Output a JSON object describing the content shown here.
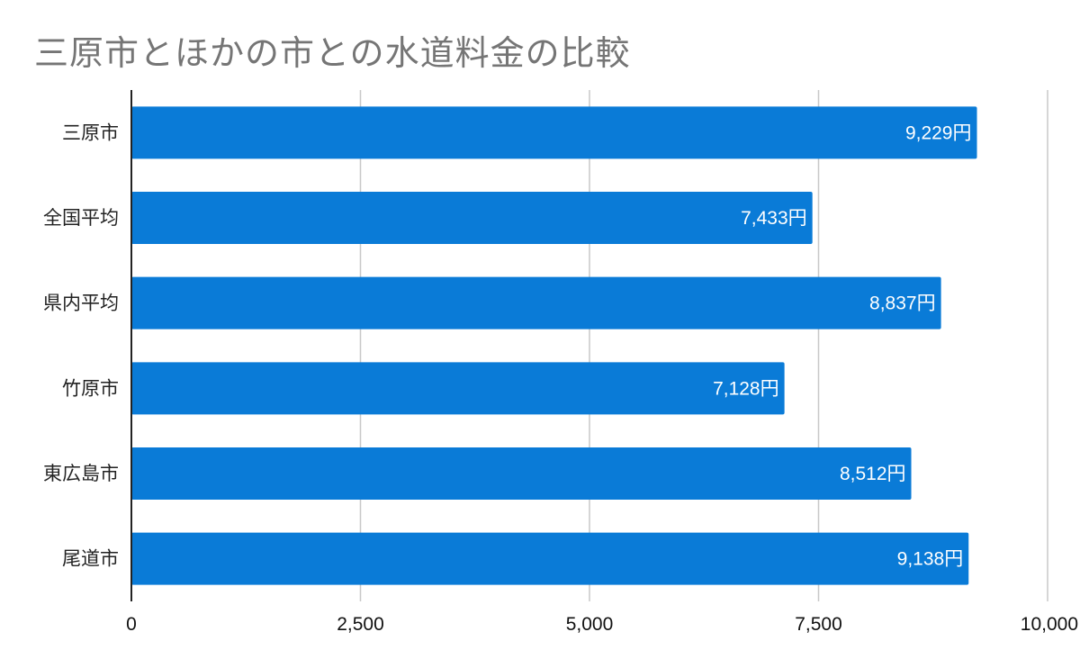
{
  "chart_data": {
    "type": "bar",
    "orientation": "horizontal",
    "title": "三原市とほかの市との水道料金の比較",
    "categories": [
      "三原市",
      "全国平均",
      "県内平均",
      "竹原市",
      "東広島市",
      "尾道市"
    ],
    "values": [
      9229,
      7433,
      8837,
      7128,
      8512,
      9138
    ],
    "data_labels": [
      "9,229円",
      "7,433円",
      "8,837円",
      "7,128円",
      "8,512円",
      "9,138円"
    ],
    "x_ticks": [
      "0",
      "2,500",
      "5,000",
      "7,500",
      "10,000"
    ],
    "xlim": [
      0,
      10000
    ],
    "grid": true,
    "legend": "none",
    "xlabel": "",
    "ylabel": "",
    "colors": {
      "bar": "#0a7bd7",
      "grid": "#c8c8c8",
      "axis": "#222222"
    }
  }
}
